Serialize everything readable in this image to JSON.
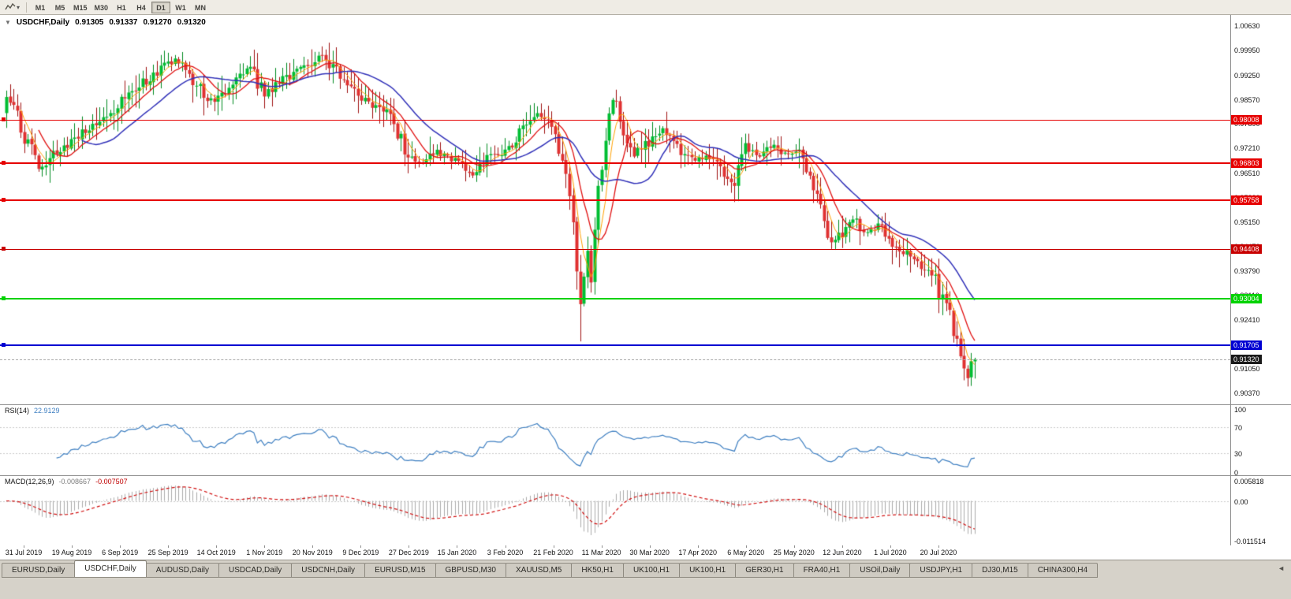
{
  "toolbar": {
    "timeframes": [
      "M1",
      "M5",
      "M15",
      "M30",
      "H1",
      "H4",
      "D1",
      "W1",
      "MN"
    ],
    "active_timeframe": "D1"
  },
  "icons": {
    "one_click": "▼",
    "tab_scroll_left": "◄",
    "toolbar_caret": "▾"
  },
  "chart": {
    "title": {
      "symbol": "USDCHF,Daily",
      "open": "0.91305",
      "high": "0.91337",
      "low": "0.91270",
      "close": "0.91320"
    },
    "price_axis": [
      "1.00630",
      "0.99950",
      "0.99250",
      "0.98570",
      "0.97890",
      "0.97210",
      "0.96510",
      "0.95830",
      "0.95150",
      "0.94470",
      "0.93790",
      "0.93110",
      "0.92410",
      "0.91730",
      "0.91050",
      "0.90370"
    ],
    "hlines": [
      {
        "label": "0.98008",
        "price": 0.98008,
        "color": "#E60000",
        "width": 1
      },
      {
        "label": "0.96803",
        "price": 0.96803,
        "color": "#E60000",
        "width": 2
      },
      {
        "label": "0.95758",
        "price": 0.95758,
        "color": "#E60000",
        "width": 2
      },
      {
        "label": "0.94408",
        "price": 0.94408,
        "color": "#C80000",
        "width": 1
      },
      {
        "label": "0.93004",
        "price": 0.93004,
        "color": "#00D200",
        "width": 2
      },
      {
        "label": "0.91705",
        "price": 0.91705,
        "color": "#0000D2",
        "width": 2
      }
    ],
    "current_price": {
      "label": "0.91320",
      "value": 0.9132
    },
    "dates": [
      "31 Jul 2019",
      "19 Aug 2019",
      "6 Sep 2019",
      "25 Sep 2019",
      "14 Oct 2019",
      "1 Nov 2019",
      "20 Nov 2019",
      "9 Dec 2019",
      "27 Dec 2019",
      "15 Jan 2020",
      "3 Feb 2020",
      "21 Feb 2020",
      "11 Mar 2020",
      "30 Mar 2020",
      "17 Apr 2020",
      "6 May 2020",
      "25 May 2020",
      "12 Jun 2020",
      "1 Jul 2020",
      "20 Jul 2020"
    ]
  },
  "rsi": {
    "label": "RSI(14)",
    "value": "22.9129",
    "levels": [
      "100",
      "70",
      "30",
      "0"
    ]
  },
  "macd": {
    "label": "MACD(12,26,9)",
    "value_main": "-0.008667",
    "value_signal": "-0.007507",
    "scale": [
      "0.005818",
      "0.00",
      "-0.011514"
    ]
  },
  "tabs": [
    "EURUSD,Daily",
    "USDCHF,Daily",
    "AUDUSD,Daily",
    "USDCAD,Daily",
    "USDCNH,Daily",
    "EURUSD,M15",
    "GBPUSD,M30",
    "XAUUSD,M5",
    "HK50,H1",
    "UK100,H1",
    "UK100,H1",
    "GER30,H1",
    "FRA40,H1",
    "USOil,Daily",
    "USDJPY,H1",
    "DJ30,M15",
    "CHINA300,H4"
  ],
  "active_tab_index": 1,
  "chart_data": {
    "type": "candlestick",
    "symbol": "USDCHF",
    "timeframe": "Daily",
    "ohlc_current": {
      "open": 0.91305,
      "high": 0.91337,
      "low": 0.9127,
      "close": 0.9132
    },
    "y_range": [
      0.9037,
      1.0063
    ],
    "bars_total": 271,
    "last_close": 0.9132,
    "anchors": [
      [
        0,
        0.988
      ],
      [
        2,
        0.9838
      ],
      [
        5,
        0.9758
      ],
      [
        9,
        0.9662
      ],
      [
        12,
        0.9702
      ],
      [
        18,
        0.9742
      ],
      [
        25,
        0.9788
      ],
      [
        32,
        0.985
      ],
      [
        38,
        0.9903
      ],
      [
        43,
        0.9942
      ],
      [
        47,
        0.9968
      ],
      [
        52,
        0.9908
      ],
      [
        56,
        0.9854
      ],
      [
        59,
        0.9868
      ],
      [
        64,
        0.9916
      ],
      [
        68,
        0.9946
      ],
      [
        72,
        0.9874
      ],
      [
        78,
        0.992
      ],
      [
        84,
        0.9956
      ],
      [
        88,
        0.9986
      ],
      [
        93,
        0.9926
      ],
      [
        98,
        0.9874
      ],
      [
        104,
        0.9834
      ],
      [
        108,
        0.9794
      ],
      [
        112,
        0.9698
      ],
      [
        116,
        0.9678
      ],
      [
        120,
        0.9712
      ],
      [
        125,
        0.9684
      ],
      [
        130,
        0.9646
      ],
      [
        134,
        0.9698
      ],
      [
        139,
        0.9716
      ],
      [
        144,
        0.9776
      ],
      [
        148,
        0.982
      ],
      [
        151,
        0.9794
      ],
      [
        154,
        0.9714
      ],
      [
        156,
        0.9646
      ],
      [
        158,
        0.9498
      ],
      [
        160,
        0.9278
      ],
      [
        162,
        0.942
      ],
      [
        163,
        0.934
      ],
      [
        165,
        0.96
      ],
      [
        167,
        0.975
      ],
      [
        169,
        0.9878
      ],
      [
        171,
        0.982
      ],
      [
        173,
        0.974
      ],
      [
        175,
        0.9706
      ],
      [
        179,
        0.9742
      ],
      [
        183,
        0.9776
      ],
      [
        187,
        0.9724
      ],
      [
        192,
        0.9688
      ],
      [
        196,
        0.9702
      ],
      [
        200,
        0.9634
      ],
      [
        203,
        0.9618
      ],
      [
        206,
        0.9716
      ],
      [
        210,
        0.9698
      ],
      [
        214,
        0.9728
      ],
      [
        218,
        0.9704
      ],
      [
        221,
        0.9716
      ],
      [
        224,
        0.9654
      ],
      [
        227,
        0.9566
      ],
      [
        230,
        0.9456
      ],
      [
        233,
        0.9482
      ],
      [
        236,
        0.9526
      ],
      [
        240,
        0.9484
      ],
      [
        243,
        0.9506
      ],
      [
        246,
        0.9468
      ],
      [
        249,
        0.9442
      ],
      [
        252,
        0.9424
      ],
      [
        255,
        0.9392
      ],
      [
        258,
        0.9368
      ],
      [
        260,
        0.9324
      ],
      [
        262,
        0.9296
      ],
      [
        264,
        0.9214
      ],
      [
        266,
        0.9156
      ],
      [
        268,
        0.9086
      ],
      [
        269,
        0.912
      ],
      [
        270,
        0.9132
      ]
    ],
    "special_wicks": {
      "47": {
        "high": 0.9982
      },
      "88": {
        "high": 1.0006
      },
      "160": {
        "low": 0.9182
      },
      "268": {
        "low": 0.9056
      }
    },
    "up_color": "#00BE32",
    "down_color": "#E03131",
    "up_border": "#008A20",
    "down_border": "#9E1010",
    "moving_averages": [
      {
        "period": 5,
        "color": "#FFA000",
        "width": 1
      },
      {
        "period": 10,
        "color": "#E01010",
        "width": 1.3
      },
      {
        "period": 22,
        "color": "#3030B8",
        "width": 1.5
      }
    ],
    "horizontal_levels": [
      0.98008,
      0.96803,
      0.95758,
      0.94408,
      0.93004,
      0.91705
    ],
    "indicators": {
      "rsi": {
        "period": 14,
        "current": 22.9129,
        "range": [
          0,
          100
        ],
        "levels": [
          70,
          30
        ],
        "color": "#3E7FC1"
      },
      "macd": {
        "fast": 12,
        "slow": 26,
        "signal_period": 9,
        "current_main": -0.008667,
        "current_signal": -0.007507,
        "scale_max": 0.005818,
        "scale_min": -0.011514,
        "hist_color": "#ABABAB",
        "signal_color": "#D01010"
      }
    }
  }
}
